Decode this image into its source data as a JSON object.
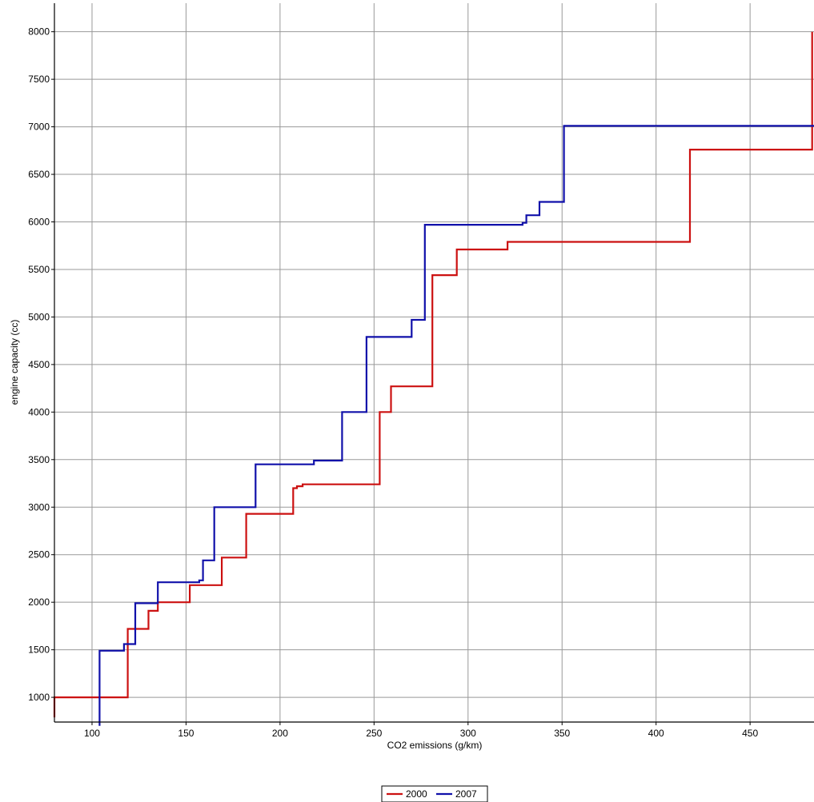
{
  "chart_data": {
    "type": "line",
    "step": true,
    "xlabel": "CO2 emissions (g/km)",
    "ylabel": "engine capacity (cc)",
    "xlim": [
      80,
      484
    ],
    "ylim": [
      740,
      8300
    ],
    "xticks": [
      100,
      150,
      200,
      250,
      300,
      350,
      400,
      450
    ],
    "yticks": [
      1000,
      1500,
      2000,
      2500,
      3000,
      3500,
      4000,
      4500,
      5000,
      5500,
      6000,
      6500,
      7000,
      7500,
      8000
    ],
    "grid": true,
    "legend_position": "bottom-center",
    "series": [
      {
        "name": "2000",
        "color": "#cc1111",
        "points": [
          [
            80,
            790
          ],
          [
            80,
            1000
          ],
          [
            119,
            1000
          ],
          [
            119,
            1720
          ],
          [
            130,
            1720
          ],
          [
            130,
            1910
          ],
          [
            135,
            1910
          ],
          [
            135,
            2000
          ],
          [
            152,
            2000
          ],
          [
            152,
            2180
          ],
          [
            169,
            2180
          ],
          [
            169,
            2470
          ],
          [
            182,
            2470
          ],
          [
            182,
            2930
          ],
          [
            207,
            2930
          ],
          [
            207,
            3200
          ],
          [
            209,
            3200
          ],
          [
            209,
            3220
          ],
          [
            212,
            3220
          ],
          [
            212,
            3240
          ],
          [
            253,
            3240
          ],
          [
            253,
            4000
          ],
          [
            259,
            4000
          ],
          [
            259,
            4270
          ],
          [
            281,
            4270
          ],
          [
            281,
            5440
          ],
          [
            294,
            5440
          ],
          [
            294,
            5710
          ],
          [
            321,
            5710
          ],
          [
            321,
            5790
          ],
          [
            418,
            5790
          ],
          [
            418,
            6760
          ],
          [
            483,
            6760
          ],
          [
            483,
            8000
          ]
        ]
      },
      {
        "name": "2007",
        "color": "#1010aa",
        "points": [
          [
            104,
            700
          ],
          [
            104,
            1490
          ],
          [
            117,
            1490
          ],
          [
            117,
            1560
          ],
          [
            123,
            1560
          ],
          [
            123,
            1990
          ],
          [
            135,
            1990
          ],
          [
            135,
            2210
          ],
          [
            157,
            2210
          ],
          [
            157,
            2230
          ],
          [
            159,
            2230
          ],
          [
            159,
            2440
          ],
          [
            165,
            2440
          ],
          [
            165,
            3000
          ],
          [
            187,
            3000
          ],
          [
            187,
            3450
          ],
          [
            218,
            3450
          ],
          [
            218,
            3490
          ],
          [
            233,
            3490
          ],
          [
            233,
            4000
          ],
          [
            246,
            4000
          ],
          [
            246,
            4790
          ],
          [
            270,
            4790
          ],
          [
            270,
            4970
          ],
          [
            277,
            4970
          ],
          [
            277,
            5970
          ],
          [
            329,
            5970
          ],
          [
            329,
            5990
          ],
          [
            331,
            5990
          ],
          [
            331,
            6070
          ],
          [
            338,
            6070
          ],
          [
            338,
            6210
          ],
          [
            351,
            6210
          ],
          [
            351,
            7010
          ],
          [
            484,
            7010
          ]
        ]
      }
    ]
  }
}
